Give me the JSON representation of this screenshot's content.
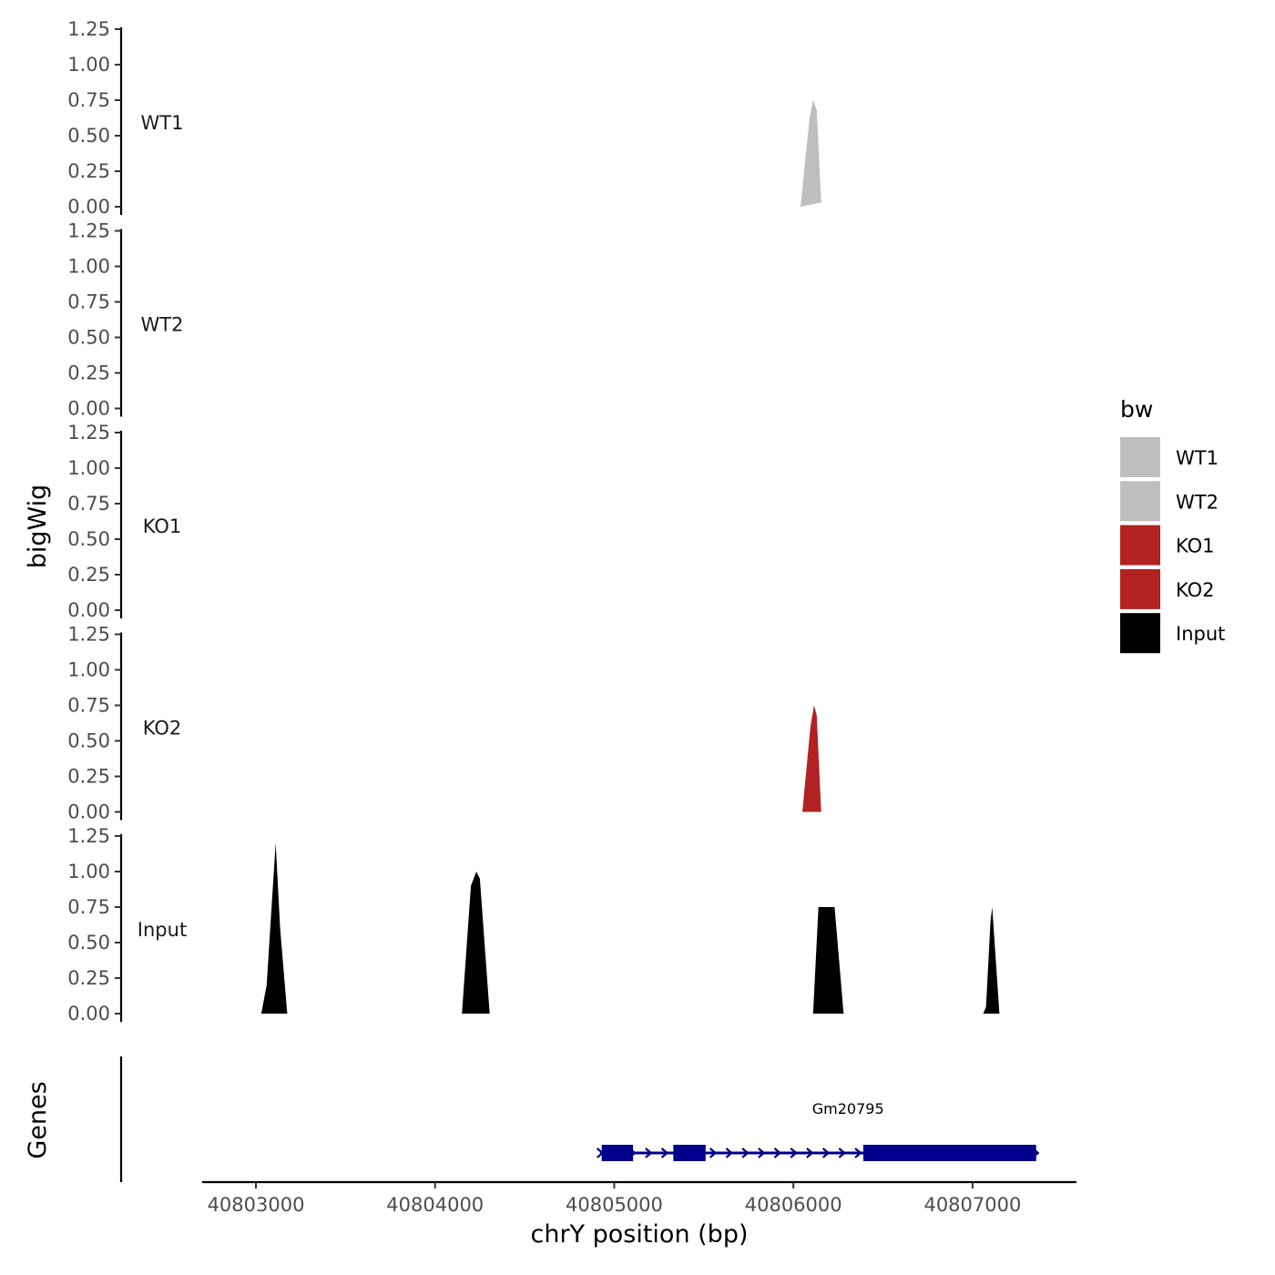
{
  "chart_data": {
    "type": "area",
    "ylabel": "bigWig",
    "xlabel": "chrY position (bp)",
    "genes_label": "Genes",
    "xlim": [
      40802700,
      40807580
    ],
    "x_ticks": [
      "40803000",
      "40804000",
      "40805000",
      "40806000",
      "40807000"
    ],
    "ylim": [
      0,
      1.25
    ],
    "y_ticks": [
      "0.00",
      "0.25",
      "0.50",
      "0.75",
      "1.00",
      "1.25"
    ],
    "legend": {
      "title": "bw",
      "position": "right",
      "items": [
        {
          "label": "WT1",
          "color": "#bebebe"
        },
        {
          "label": "WT2",
          "color": "#bebebe"
        },
        {
          "label": "KO1",
          "color": "#b22222"
        },
        {
          "label": "KO2",
          "color": "#b22222"
        },
        {
          "label": "Input",
          "color": "#000000"
        }
      ]
    },
    "series": [
      {
        "name": "WT1",
        "color": "#bebebe",
        "peaks": [
          {
            "x": [
              40806040,
              40806090,
              40806110,
              40806130,
              40806155
            ],
            "y": [
              0,
              0.62,
              0.75,
              0.68,
              0.03
            ]
          }
        ]
      },
      {
        "name": "WT2",
        "color": "#bebebe",
        "peaks": []
      },
      {
        "name": "KO1",
        "color": "#b22222",
        "peaks": []
      },
      {
        "name": "KO2",
        "color": "#b22222",
        "peaks": [
          {
            "x": [
              40806050,
              40806095,
              40806115,
              40806130,
              40806155
            ],
            "y": [
              0,
              0.6,
              0.75,
              0.68,
              0
            ]
          }
        ]
      },
      {
        "name": "Input",
        "color": "#000000",
        "peaks": [
          {
            "x": [
              40803030,
              40803060,
              40803090,
              40803110,
              40803135,
              40803175
            ],
            "y": [
              0,
              0.2,
              0.8,
              1.2,
              0.6,
              0
            ]
          },
          {
            "x": [
              40804150,
              40804200,
              40804230,
              40804250,
              40804305
            ],
            "y": [
              0,
              0.9,
              1.0,
              0.95,
              0
            ]
          },
          {
            "x": [
              40806110,
              40806140,
              40806190,
              40806230,
              40806280
            ],
            "y": [
              0,
              0.75,
              0.75,
              0.75,
              0
            ]
          },
          {
            "x": [
              40807060,
              40807075,
              40807100,
              40807110,
              40807150
            ],
            "y": [
              0,
              0.05,
              0.65,
              0.75,
              0
            ]
          }
        ]
      }
    ],
    "gene": {
      "name": "Gm20795",
      "color": "#00008b",
      "start": 40804920,
      "end": 40807350,
      "exons": [
        [
          40804930,
          40805105
        ],
        [
          40805330,
          40805510
        ],
        [
          40806390,
          40807355
        ]
      ],
      "strand": "+"
    }
  }
}
